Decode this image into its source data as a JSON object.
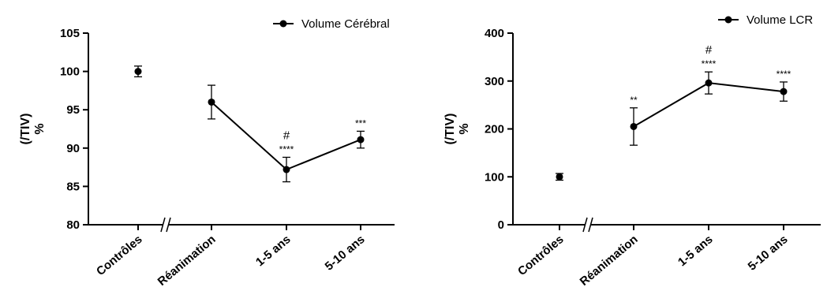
{
  "chart_data": [
    {
      "type": "line",
      "title": "",
      "ylabel": "% (/TIV)",
      "ylabel_lines": [
        "%",
        "(/TIV)"
      ],
      "ylim": [
        80,
        105
      ],
      "yticks": [
        80,
        85,
        90,
        95,
        100,
        105
      ],
      "categories": [
        "Contrôles",
        "Réanimation",
        "1-5 ans",
        "5-10 ans"
      ],
      "series": [
        {
          "name": "Volume Cérébral",
          "values": [
            100,
            96,
            87.2,
            91.1
          ],
          "error": [
            0.7,
            2.2,
            1.6,
            1.1
          ],
          "connected_from_index": 1
        }
      ],
      "significance": [
        "",
        "",
        "****",
        "***"
      ],
      "hash_marks": [
        "",
        "",
        "#",
        ""
      ],
      "axis_break": true,
      "legend_position": "top-right"
    },
    {
      "type": "line",
      "title": "",
      "ylabel": "% (/TIV)",
      "ylabel_lines": [
        "%",
        "(/TIV)"
      ],
      "ylim": [
        0,
        400
      ],
      "yticks": [
        0,
        100,
        200,
        300,
        400
      ],
      "categories": [
        "Contrôles",
        "Réanimation",
        "1-5 ans",
        "5-10 ans"
      ],
      "series": [
        {
          "name": "Volume LCR",
          "values": [
            100,
            205,
            296,
            278
          ],
          "error": [
            7,
            39,
            23,
            20
          ],
          "connected_from_index": 1
        }
      ],
      "significance": [
        "",
        "**",
        "****",
        "****"
      ],
      "hash_marks": [
        "",
        "",
        "#",
        ""
      ],
      "axis_break": true,
      "legend_position": "top-right"
    }
  ]
}
